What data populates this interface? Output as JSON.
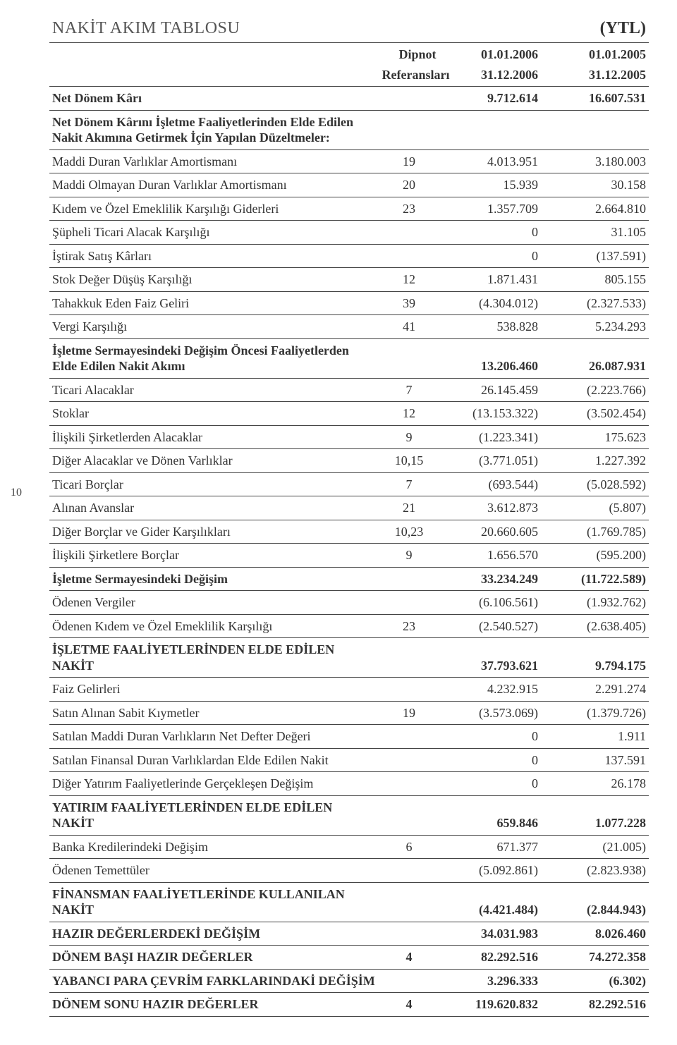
{
  "page_number": "10",
  "title": "NAKİT AKIM TABLOSU",
  "currency": "(YTL)",
  "header": {
    "note_label_top": "Dipnot",
    "note_label_bottom": "Referansları",
    "period1_top": "01.01.2006",
    "period1_bottom": "31.12.2006",
    "period2_top": "01.01.2005",
    "period2_bottom": "31.12.2005"
  },
  "rows": [
    {
      "label": "Net Dönem Kârı",
      "note": "",
      "v1": "9.712.614",
      "v2": "16.607.531",
      "bold": true,
      "rule_above": true,
      "rule_below": true
    },
    {
      "label": "Net Dönem Kârını İşletme Faaliyetlerinden Elde Edilen\nNakit Akımına Getirmek İçin Yapılan Düzeltmeler:",
      "note": "",
      "v1": "",
      "v2": "",
      "bold": true,
      "rule_below": true
    },
    {
      "label": "Maddi Duran Varlıklar Amortismanı",
      "note": "19",
      "v1": "4.013.951",
      "v2": "3.180.003",
      "rule_below": true
    },
    {
      "label": "Maddi Olmayan Duran Varlıklar Amortismanı",
      "note": "20",
      "v1": "15.939",
      "v2": "30.158",
      "rule_below": true
    },
    {
      "label": "Kıdem ve Özel Emeklilik Karşılığı Giderleri",
      "note": "23",
      "v1": "1.357.709",
      "v2": "2.664.810",
      "rule_below": true
    },
    {
      "label": "Şüpheli Ticari Alacak Karşılığı",
      "note": "",
      "v1": "0",
      "v2": "31.105",
      "rule_below": true
    },
    {
      "label": "İştirak Satış Kârları",
      "note": "",
      "v1": "0",
      "v2": "(137.591)",
      "rule_below": true
    },
    {
      "label": "Stok Değer Düşüş Karşılığı",
      "note": "12",
      "v1": "1.871.431",
      "v2": "805.155",
      "rule_below": true
    },
    {
      "label": "Tahakkuk Eden Faiz Geliri",
      "note": "39",
      "v1": "(4.304.012)",
      "v2": "(2.327.533)",
      "rule_below": true
    },
    {
      "label": "Vergi Karşılığı",
      "note": "41",
      "v1": "538.828",
      "v2": "5.234.293",
      "rule_below": true
    },
    {
      "label": "İşletme Sermayesindeki Değişim Öncesi Faaliyetlerden\nElde Edilen Nakit Akımı",
      "note": "",
      "v1": "13.206.460",
      "v2": "26.087.931",
      "bold": true,
      "rule_below": true
    },
    {
      "label": "Ticari Alacaklar",
      "note": "7",
      "v1": "26.145.459",
      "v2": "(2.223.766)",
      "rule_below": true
    },
    {
      "label": "Stoklar",
      "note": "12",
      "v1": "(13.153.322)",
      "v2": "(3.502.454)",
      "rule_below": true
    },
    {
      "label": "İlişkili Şirketlerden Alacaklar",
      "note": "9",
      "v1": "(1.223.341)",
      "v2": "175.623",
      "rule_below": true
    },
    {
      "label": "Diğer Alacaklar ve Dönen Varlıklar",
      "note": "10,15",
      "v1": "(3.771.051)",
      "v2": "1.227.392",
      "rule_below": true
    },
    {
      "label": "Ticari Borçlar",
      "note": "7",
      "v1": "(693.544)",
      "v2": "(5.028.592)",
      "rule_below": true
    },
    {
      "label": "Alınan Avanslar",
      "note": "21",
      "v1": "3.612.873",
      "v2": "(5.807)",
      "rule_below": true
    },
    {
      "label": "Diğer Borçlar ve Gider Karşılıkları",
      "note": "10,23",
      "v1": "20.660.605",
      "v2": "(1.769.785)",
      "rule_below": true
    },
    {
      "label": "İlişkili Şirketlere Borçlar",
      "note": "9",
      "v1": "1.656.570",
      "v2": "(595.200)",
      "rule_below": true
    },
    {
      "label": "İşletme Sermayesindeki Değişim",
      "note": "",
      "v1": "33.234.249",
      "v2": "(11.722.589)",
      "bold": true,
      "rule_below": true
    },
    {
      "label": "Ödenen Vergiler",
      "note": "",
      "v1": "(6.106.561)",
      "v2": "(1.932.762)",
      "rule_below": true
    },
    {
      "label": "Ödenen Kıdem ve Özel Emeklilik Karşılığı",
      "note": "23",
      "v1": "(2.540.527)",
      "v2": "(2.638.405)",
      "rule_below": true
    },
    {
      "label": "İŞLETME FAALİYETLERİNDEN ELDE EDİLEN NAKİT",
      "note": "",
      "v1": "37.793.621",
      "v2": "9.794.175",
      "bold": true,
      "rule_below": true
    },
    {
      "label": "Faiz Gelirleri",
      "note": "",
      "v1": "4.232.915",
      "v2": "2.291.274",
      "rule_below": true
    },
    {
      "label": "Satın Alınan Sabit Kıymetler",
      "note": "19",
      "v1": "(3.573.069)",
      "v2": "(1.379.726)",
      "rule_below": true
    },
    {
      "label": "Satılan Maddi Duran Varlıkların Net Defter Değeri",
      "note": "",
      "v1": "0",
      "v2": "1.911",
      "rule_below": true
    },
    {
      "label": "Satılan Finansal Duran Varlıklardan Elde Edilen Nakit",
      "note": "",
      "v1": "0",
      "v2": "137.591",
      "rule_below": true
    },
    {
      "label": "Diğer Yatırım Faaliyetlerinde Gerçekleşen Değişim",
      "note": "",
      "v1": "0",
      "v2": "26.178",
      "rule_below": true
    },
    {
      "label": "YATIRIM FAALİYETLERİNDEN ELDE EDİLEN NAKİT",
      "note": "",
      "v1": "659.846",
      "v2": "1.077.228",
      "bold": true,
      "rule_below": true
    },
    {
      "label": "Banka Kredilerindeki Değişim",
      "note": "6",
      "v1": "671.377",
      "v2": "(21.005)",
      "rule_below": true
    },
    {
      "label": "Ödenen Temettüler",
      "note": "",
      "v1": "(5.092.861)",
      "v2": "(2.823.938)",
      "rule_below": true
    },
    {
      "label": "FİNANSMAN FAALİYETLERİNDE KULLANILAN NAKİT",
      "note": "",
      "v1": "(4.421.484)",
      "v2": "(2.844.943)",
      "bold": true,
      "rule_below": true
    },
    {
      "label": "HAZIR DEĞERLERDEKİ DEĞİŞİM",
      "note": "",
      "v1": "34.031.983",
      "v2": "8.026.460",
      "bold": true,
      "rule_below": true
    },
    {
      "label": "DÖNEM BAŞI HAZIR DEĞERLER",
      "note": "4",
      "v1": "82.292.516",
      "v2": "74.272.358",
      "bold": true,
      "rule_below": true
    },
    {
      "label": "YABANCI PARA ÇEVRİM FARKLARINDAKİ DEĞİŞİM",
      "note": "",
      "v1": "3.296.333",
      "v2": "(6.302)",
      "bold": true,
      "rule_below": true
    },
    {
      "label": "DÖNEM SONU HAZIR DEĞERLER",
      "note": "4",
      "v1": "119.620.832",
      "v2": "82.292.516",
      "bold": true,
      "rule_below": true
    }
  ]
}
